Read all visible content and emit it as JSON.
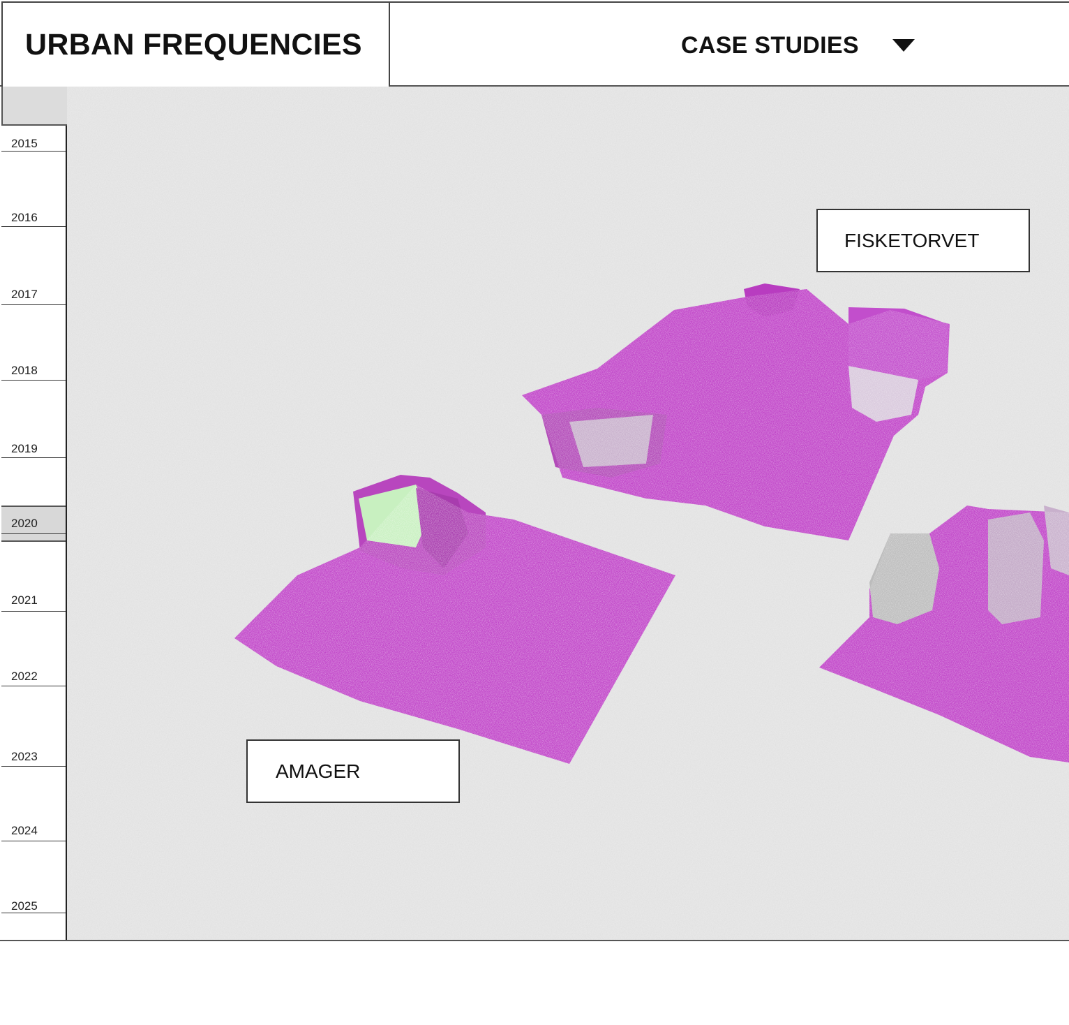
{
  "header": {
    "brand_title": "URBAN FREQUENCIES",
    "nav_label": "CASE STUDIES",
    "nav_icon": "caret-down-icon"
  },
  "timeline": {
    "years": [
      "2015",
      "2016",
      "2017",
      "2018",
      "2019",
      "2020",
      "2021",
      "2022",
      "2023",
      "2024",
      "2025"
    ],
    "active_year": "2020"
  },
  "sites": {
    "fisketorvet": "FISKETORVET",
    "amager": "AMAGER"
  },
  "colors": {
    "point_cloud": "#c044c8",
    "point_cloud_highlight": "#c8f0c0",
    "canvas_bg": "#ececec",
    "line": "#333333"
  }
}
